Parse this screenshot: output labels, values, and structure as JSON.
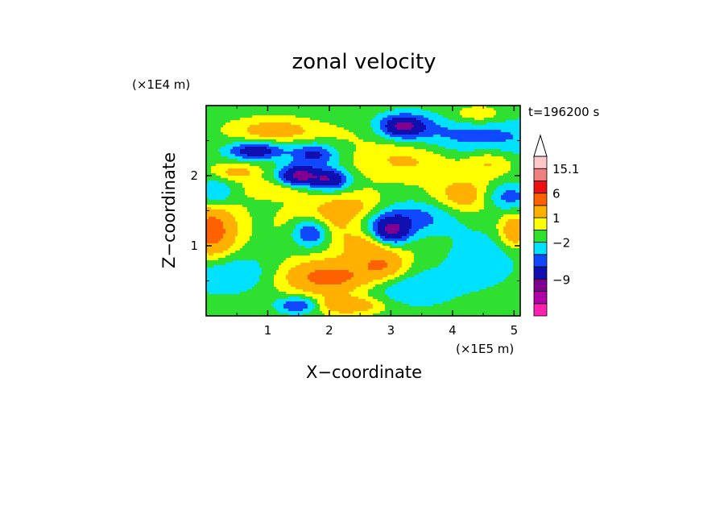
{
  "chart_data": {
    "type": "heatmap",
    "title": "zonal velocity",
    "xlabel": "X−coordinate",
    "ylabel": "Z−coordinate",
    "x_unit": "(×1E5 m)",
    "y_unit": "(×1E4 m)",
    "time_label": "t=196200 s",
    "xlim": [
      0,
      5.1
    ],
    "ylim": [
      0,
      3
    ],
    "x_ticks": [
      "1",
      "2",
      "3",
      "4",
      "5"
    ],
    "x_tick_values": [
      1,
      2,
      3,
      4,
      5
    ],
    "y_ticks": [
      "1",
      "2"
    ],
    "y_tick_values": [
      1,
      2
    ],
    "grid": false,
    "colorbar": {
      "labels": [
        "15.1",
        "6",
        "1",
        "−2",
        "−9"
      ],
      "label_values": [
        15.1,
        6,
        1,
        -2,
        -9
      ],
      "bands": [
        {
          "color": "#ff20b0"
        },
        {
          "color": "#b000a8"
        },
        {
          "color": "#800090"
        },
        {
          "color": "#1010b0"
        },
        {
          "color": "#1048ff"
        },
        {
          "color": "#00e0ff"
        },
        {
          "color": "#30e030"
        },
        {
          "color": "#ffff00"
        },
        {
          "color": "#ffb000"
        },
        {
          "color": "#ff6000"
        },
        {
          "color": "#ee1010"
        },
        {
          "color": "#f08080"
        },
        {
          "color": "#ffc8c8"
        }
      ]
    },
    "features": [
      {
        "x": 4.0,
        "z": 2.55,
        "sx": 1.7,
        "sz": 0.35,
        "a": -3.2
      },
      {
        "x": 2.4,
        "z": 2.6,
        "sx": 1.0,
        "sz": 0.22,
        "a": 1.2
      },
      {
        "x": 3.3,
        "z": 2.3,
        "sx": 0.9,
        "sz": 0.3,
        "a": 2.8
      },
      {
        "x": 3.2,
        "z": 2.7,
        "sx": 0.35,
        "sz": 0.15,
        "a": -6
      },
      {
        "x": 4.4,
        "z": 2.85,
        "sx": 0.5,
        "sz": 0.15,
        "a": 2.2
      },
      {
        "x": 1.1,
        "z": 2.65,
        "sx": 0.6,
        "sz": 0.15,
        "a": 2.4
      },
      {
        "x": 0.8,
        "z": 2.35,
        "sx": 0.45,
        "sz": 0.12,
        "a": -5
      },
      {
        "x": 1.75,
        "z": 2.3,
        "sx": 0.35,
        "sz": 0.15,
        "a": -4
      },
      {
        "x": 1.5,
        "z": 2.0,
        "sx": 0.3,
        "sz": 0.15,
        "a": -7
      },
      {
        "x": 2.0,
        "z": 1.95,
        "sx": 0.3,
        "sz": 0.15,
        "a": -6
      },
      {
        "x": 0.5,
        "z": 2.05,
        "sx": 0.35,
        "sz": 0.12,
        "a": 2
      },
      {
        "x": 1.2,
        "z": 1.8,
        "sx": 0.5,
        "sz": 0.12,
        "a": 1.6
      },
      {
        "x": 2.4,
        "z": 1.55,
        "sx": 0.6,
        "sz": 0.2,
        "a": 2.2
      },
      {
        "x": 0.1,
        "z": 1.2,
        "sx": 0.4,
        "sz": 0.45,
        "a": 4
      },
      {
        "x": 1.9,
        "z": 1.3,
        "sx": 0.6,
        "sz": 0.25,
        "a": 2.2
      },
      {
        "x": 2.0,
        "z": 0.55,
        "sx": 0.8,
        "sz": 0.25,
        "a": 4
      },
      {
        "x": 2.9,
        "z": 0.7,
        "sx": 0.4,
        "sz": 0.2,
        "a": 2.8
      },
      {
        "x": 0.3,
        "z": 0.6,
        "sx": 0.8,
        "sz": 0.3,
        "a": -2.5
      },
      {
        "x": 1.7,
        "z": 1.2,
        "sx": 0.3,
        "sz": 0.2,
        "a": -5
      },
      {
        "x": 3.0,
        "z": 1.2,
        "sx": 0.3,
        "sz": 0.2,
        "a": -6
      },
      {
        "x": 3.3,
        "z": 1.4,
        "sx": 0.8,
        "sz": 0.25,
        "a": -3
      },
      {
        "x": 2.7,
        "z": 1.0,
        "sx": 0.5,
        "sz": 0.2,
        "a": 2.5
      },
      {
        "x": 1.5,
        "z": 0.15,
        "sx": 0.35,
        "sz": 0.12,
        "a": -4
      },
      {
        "x": 2.3,
        "z": 0.15,
        "sx": 0.6,
        "sz": 0.12,
        "a": 3
      },
      {
        "x": 3.3,
        "z": 0.4,
        "sx": 0.8,
        "sz": 0.3,
        "a": -2.2
      },
      {
        "x": 4.5,
        "z": 0.8,
        "sx": 0.6,
        "sz": 0.4,
        "a": -2
      },
      {
        "x": 5.0,
        "z": 1.2,
        "sx": 0.25,
        "sz": 0.25,
        "a": 3
      },
      {
        "x": 4.2,
        "z": 1.7,
        "sx": 0.5,
        "sz": 0.25,
        "a": 2.5
      },
      {
        "x": 4.9,
        "z": 1.7,
        "sx": 0.4,
        "sz": 0.2,
        "a": -3
      },
      {
        "x": 0.15,
        "z": 1.75,
        "sx": 0.3,
        "sz": 0.2,
        "a": -3
      },
      {
        "x": 4.6,
        "z": 2.2,
        "sx": 0.4,
        "sz": 0.2,
        "a": 2
      }
    ]
  }
}
